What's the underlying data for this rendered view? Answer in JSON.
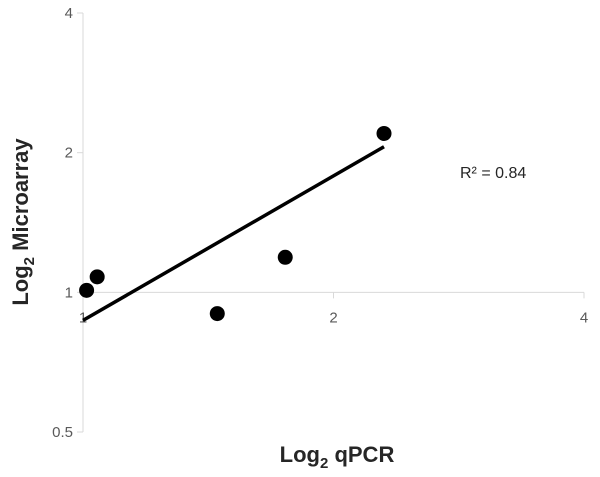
{
  "chart_data": {
    "type": "scatter",
    "title": "",
    "x_scale": "log2",
    "y_scale": "log2",
    "xlim": [
      1,
      4
    ],
    "ylim": [
      0.5,
      4
    ],
    "x_ticks": [
      "1",
      "2",
      "4"
    ],
    "y_ticks": [
      "0.5",
      "1",
      "2",
      "4"
    ],
    "xlabel": {
      "main": "Log",
      "sub": "2",
      "rest": " qPCR"
    },
    "ylabel": {
      "main": "Log",
      "sub": "2",
      "rest": " Microarray"
    },
    "series": [
      {
        "points": [
          {
            "x": 1.01,
            "y": 1.01
          },
          {
            "x": 1.04,
            "y": 1.08
          },
          {
            "x": 1.45,
            "y": 0.9
          },
          {
            "x": 1.75,
            "y": 1.19
          },
          {
            "x": 2.3,
            "y": 2.2
          }
        ]
      }
    ],
    "trendline": {
      "x": [
        1.0,
        2.3
      ],
      "y": [
        0.87,
        2.06
      ]
    },
    "annotation": "R² = 0.84",
    "grid": false,
    "colors": {
      "marker": "#000000",
      "axis": "#d9d9d9",
      "text": "#595959"
    }
  }
}
